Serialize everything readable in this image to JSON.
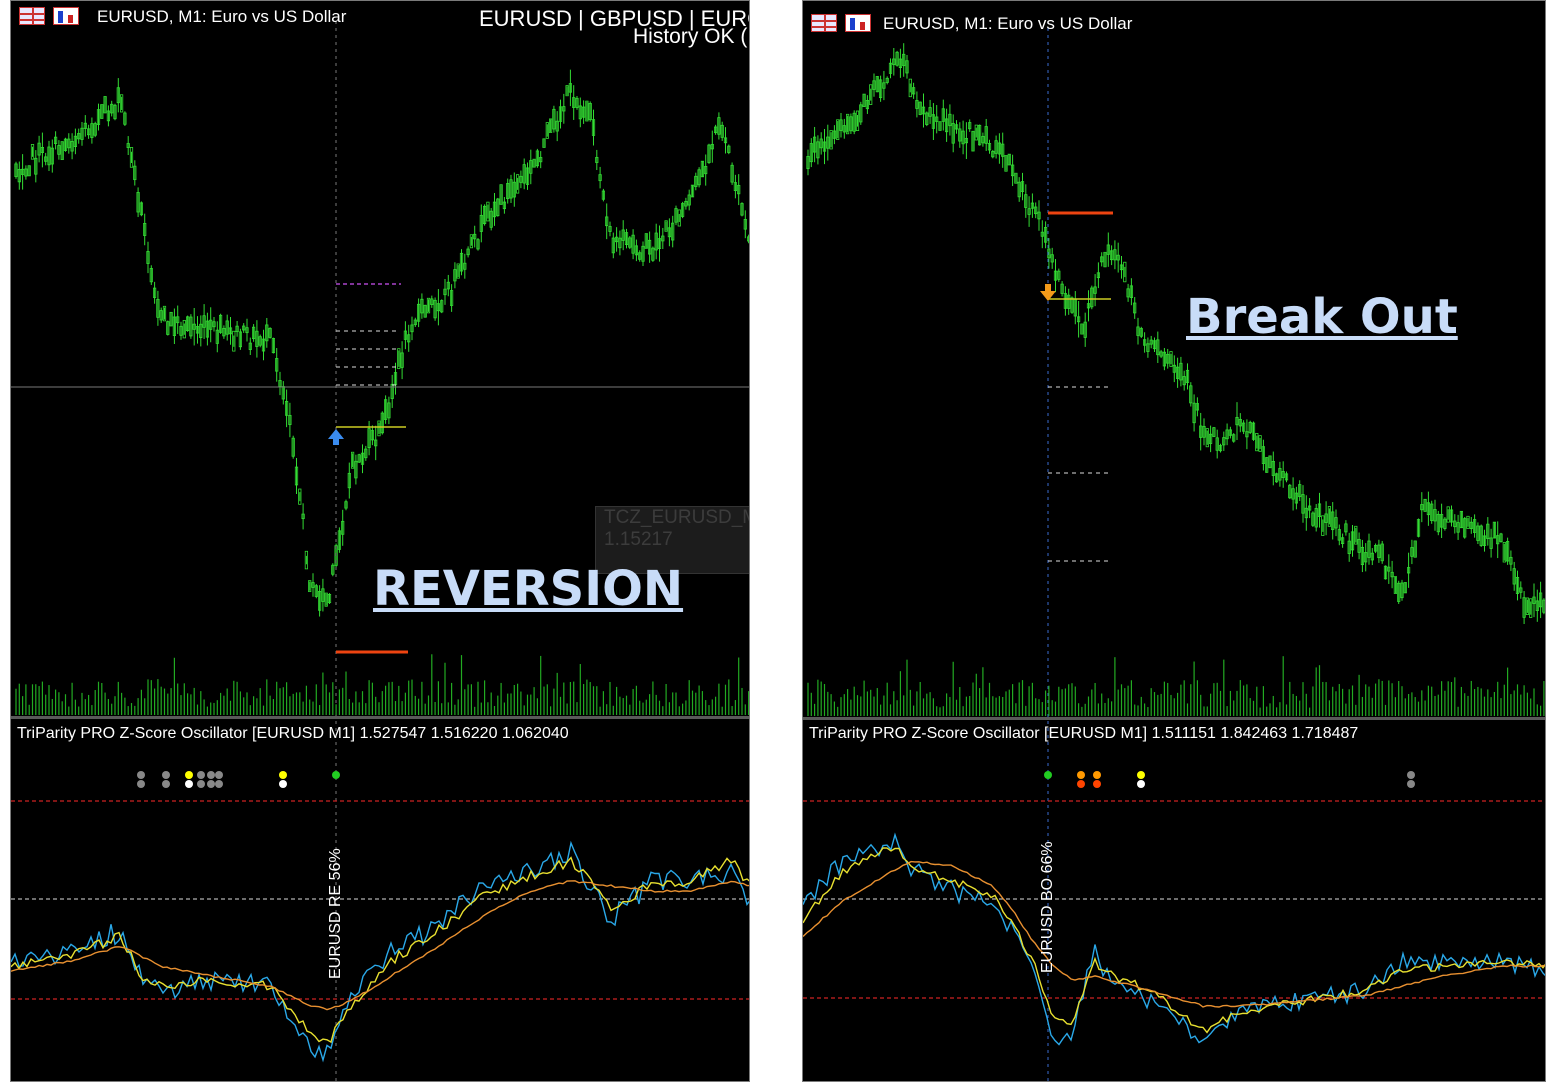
{
  "left_panel": {
    "symbol_title": "EURUSD, M1:  Euro vs US Dollar",
    "top_right_line1": "EURUSD | GBPUSD | EURG",
    "top_right_line2": "History OK (",
    "tooltip_name": "TCZ_EURUSD_M",
    "tooltip_value": "1.15217",
    "annotation": "REVERSION",
    "oscillator_title": "TriParity PRO Z-Score Oscillator [EURUSD M1] 1.527547 1.516220 1.062040",
    "signal_label": "EURUSD RE 56%"
  },
  "right_panel": {
    "symbol_title": "EURUSD, M1:  Euro vs US Dollar",
    "annotation": "Break Out",
    "oscillator_title": "TriParity PRO Z-Score Oscillator [EURUSD M1] 1.511151 1.842463 1.718487",
    "signal_label": "EURUSD BO 66%"
  },
  "colors": {
    "candle": "#33dd33",
    "volume": "#22aa22",
    "z_line": "#2aa8e8",
    "fast_line": "#e8e030",
    "slow_line": "#e89030",
    "level_red": "#cc2222",
    "entry_line": "#cccc22",
    "stop_line": "#ee4411",
    "target_line": "#aa44cc"
  },
  "icons": [
    "table-icon",
    "bar-chart-icon",
    "up-arrow-signal-icon",
    "down-arrow-signal-icon"
  ]
}
